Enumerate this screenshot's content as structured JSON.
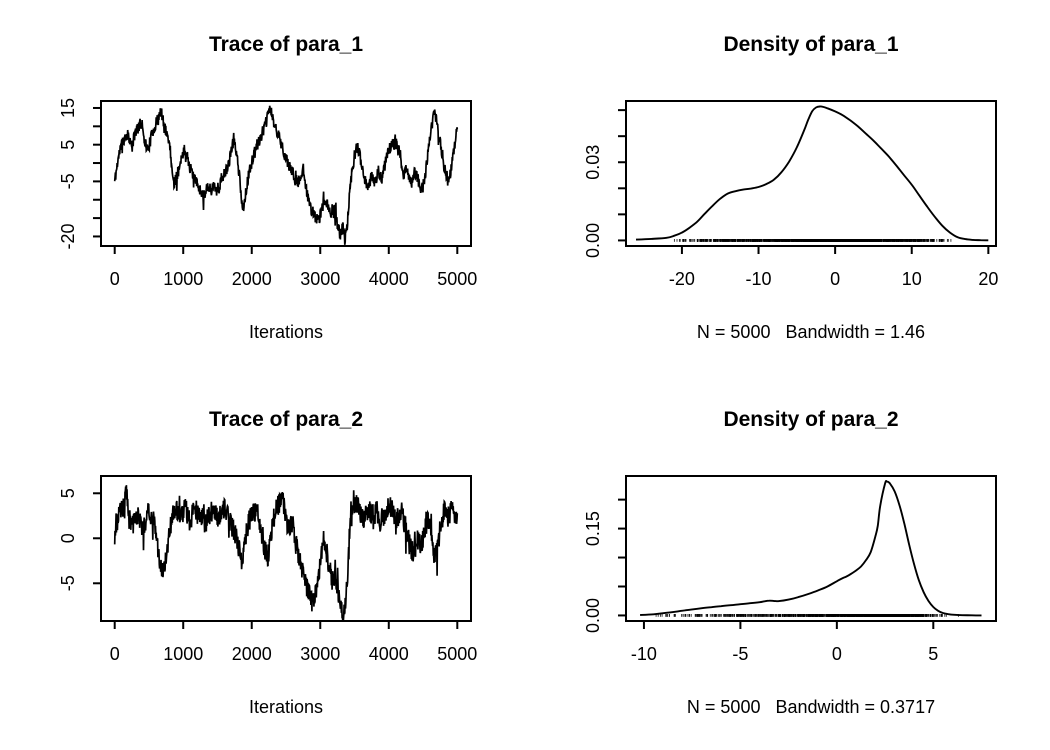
{
  "figure": {
    "background": "#ffffff",
    "foreground": "#000000",
    "description": "MCMC trace and density diagnostic plots for para_1 and para_2"
  },
  "chart_data": [
    {
      "id": "trace-para-1",
      "type": "line",
      "title": "Trace of para_1",
      "xlabel": "Iterations",
      "xlim": [
        -200,
        5200
      ],
      "ylim": [
        -22.6,
        16.9
      ],
      "xticks": [
        0,
        1000,
        2000,
        3000,
        4000,
        5000
      ],
      "xtick_labels": [
        "0",
        "1000",
        "2000",
        "3000",
        "4000",
        "5000"
      ],
      "yticks": [
        15,
        10,
        5,
        0,
        -5,
        -10,
        -15,
        -20
      ],
      "ytick_labels": [
        "15",
        "",
        "5",
        "",
        "-5",
        "",
        "",
        "-20"
      ],
      "series_anchors": [
        [
          0,
          -5
        ],
        [
          40,
          0
        ],
        [
          80,
          4
        ],
        [
          130,
          6.5
        ],
        [
          200,
          8
        ],
        [
          250,
          4
        ],
        [
          300,
          8.5
        ],
        [
          350,
          10
        ],
        [
          400,
          11
        ],
        [
          440,
          6
        ],
        [
          480,
          3.5
        ],
        [
          520,
          6
        ],
        [
          560,
          9
        ],
        [
          600,
          10.5
        ],
        [
          640,
          12.5
        ],
        [
          680,
          14
        ],
        [
          720,
          10
        ],
        [
          760,
          8
        ],
        [
          790,
          6.5
        ],
        [
          820,
          2
        ],
        [
          860,
          -6
        ],
        [
          900,
          -3.5
        ],
        [
          950,
          -1
        ],
        [
          1020,
          4
        ],
        [
          1070,
          1
        ],
        [
          1120,
          -2.5
        ],
        [
          1180,
          -5
        ],
        [
          1240,
          -7
        ],
        [
          1300,
          -9
        ],
        [
          1350,
          -6
        ],
        [
          1400,
          -7.5
        ],
        [
          1450,
          -6
        ],
        [
          1510,
          -8
        ],
        [
          1560,
          -4
        ],
        [
          1620,
          -2.5
        ],
        [
          1680,
          1
        ],
        [
          1740,
          7
        ],
        [
          1800,
          0
        ],
        [
          1870,
          -13
        ],
        [
          1910,
          -8
        ],
        [
          1960,
          -3
        ],
        [
          2010,
          1
        ],
        [
          2080,
          5
        ],
        [
          2150,
          8
        ],
        [
          2210,
          11
        ],
        [
          2265,
          15.3
        ],
        [
          2320,
          11
        ],
        [
          2380,
          8
        ],
        [
          2440,
          5
        ],
        [
          2500,
          1
        ],
        [
          2550,
          -1
        ],
        [
          2610,
          -3
        ],
        [
          2680,
          -5.5
        ],
        [
          2750,
          -1.5
        ],
        [
          2800,
          -7
        ],
        [
          2850,
          -12
        ],
        [
          2910,
          -14
        ],
        [
          2970,
          -16
        ],
        [
          3020,
          -13
        ],
        [
          3060,
          -9.5
        ],
        [
          3110,
          -11.5
        ],
        [
          3160,
          -14
        ],
        [
          3210,
          -13
        ],
        [
          3250,
          -17
        ],
        [
          3290,
          -19.5
        ],
        [
          3330,
          -17
        ],
        [
          3360,
          -21
        ],
        [
          3395,
          -17
        ],
        [
          3425,
          -9
        ],
        [
          3460,
          -3
        ],
        [
          3500,
          2
        ],
        [
          3550,
          4.5
        ],
        [
          3600,
          0
        ],
        [
          3650,
          -4
        ],
        [
          3700,
          -7
        ],
        [
          3750,
          -3
        ],
        [
          3800,
          -5.5
        ],
        [
          3850,
          -2
        ],
        [
          3900,
          -4.5
        ],
        [
          3950,
          0
        ],
        [
          4000,
          4
        ],
        [
          4060,
          5
        ],
        [
          4120,
          5.5
        ],
        [
          4170,
          2
        ],
        [
          4210,
          -4
        ],
        [
          4260,
          -1
        ],
        [
          4300,
          -4
        ],
        [
          4340,
          -5.5
        ],
        [
          4380,
          -2.5
        ],
        [
          4420,
          -4
        ],
        [
          4460,
          -7
        ],
        [
          4500,
          -6.5
        ],
        [
          4540,
          -2
        ],
        [
          4580,
          4
        ],
        [
          4620,
          9
        ],
        [
          4660,
          14.5
        ],
        [
          4690,
          12
        ],
        [
          4720,
          9
        ],
        [
          4760,
          5
        ],
        [
          4800,
          0
        ],
        [
          4840,
          -3.5
        ],
        [
          4870,
          -5.5
        ],
        [
          4900,
          -3
        ],
        [
          4930,
          1
        ],
        [
          4960,
          5
        ],
        [
          5000,
          9.5
        ]
      ],
      "noise": {
        "amp": 1.7,
        "n": 1000,
        "seed": 11
      }
    },
    {
      "id": "density-para-1",
      "type": "area",
      "title": "Density of para_1",
      "xlabel": "N = 5000   Bandwidth = 1.46",
      "xlim": [
        -27.3,
        21.0
      ],
      "ylim": [
        -0.00214,
        0.0535
      ],
      "xticks": [
        -20,
        -10,
        0,
        10,
        20
      ],
      "xtick_labels": [
        "-20",
        "-10",
        "0",
        "10",
        "20"
      ],
      "yticks": [
        0,
        0.01,
        0.02,
        0.03,
        0.04,
        0.05
      ],
      "ytick_labels": [
        "0.00",
        "",
        "",
        "0.03",
        "",
        ""
      ],
      "curve": [
        [
          -26,
          0.0003
        ],
        [
          -24,
          0.0006
        ],
        [
          -22,
          0.001
        ],
        [
          -21,
          0.0018
        ],
        [
          -20,
          0.003
        ],
        [
          -19,
          0.0049
        ],
        [
          -18,
          0.0072
        ],
        [
          -17,
          0.0103
        ],
        [
          -16,
          0.0133
        ],
        [
          -15,
          0.016
        ],
        [
          -14,
          0.018
        ],
        [
          -13,
          0.0189
        ],
        [
          -12,
          0.0195
        ],
        [
          -11,
          0.0199
        ],
        [
          -10,
          0.0205
        ],
        [
          -9,
          0.0216
        ],
        [
          -8,
          0.0233
        ],
        [
          -7,
          0.0262
        ],
        [
          -6,
          0.0303
        ],
        [
          -5,
          0.0357
        ],
        [
          -4,
          0.0426
        ],
        [
          -3.5,
          0.0464
        ],
        [
          -3,
          0.0495
        ],
        [
          -2.5,
          0.051
        ],
        [
          -2,
          0.0514
        ],
        [
          -1.5,
          0.0512
        ],
        [
          -1,
          0.0507
        ],
        [
          0,
          0.0495
        ],
        [
          1,
          0.048
        ],
        [
          2,
          0.046
        ],
        [
          3,
          0.0437
        ],
        [
          4,
          0.041
        ],
        [
          5,
          0.0383
        ],
        [
          6,
          0.0353
        ],
        [
          7,
          0.0322
        ],
        [
          8,
          0.0287
        ],
        [
          9,
          0.025
        ],
        [
          10,
          0.0214
        ],
        [
          11,
          0.0172
        ],
        [
          12,
          0.013
        ],
        [
          13,
          0.0091
        ],
        [
          14,
          0.0056
        ],
        [
          15,
          0.003
        ],
        [
          16,
          0.0012
        ],
        [
          17,
          0.0005
        ],
        [
          18,
          0.0002
        ],
        [
          19,
          0.0001
        ],
        [
          20,
          5e-05
        ]
      ],
      "rug": {
        "n": 1600,
        "seed": 5,
        "range": [
          -21.3,
          15.3
        ]
      }
    },
    {
      "id": "trace-para-2",
      "type": "line",
      "title": "Trace of para_2",
      "xlabel": "Iterations",
      "xlim": [
        -200,
        5200
      ],
      "ylim": [
        -9.19,
        6.92
      ],
      "xticks": [
        0,
        1000,
        2000,
        3000,
        4000,
        5000
      ],
      "xtick_labels": [
        "0",
        "1000",
        "2000",
        "3000",
        "4000",
        "5000"
      ],
      "yticks": [
        5,
        0,
        -5
      ],
      "ytick_labels": [
        "5",
        "0",
        "-5"
      ],
      "series_anchors": [
        [
          0,
          0.3
        ],
        [
          60,
          2.8
        ],
        [
          120,
          3.2
        ],
        [
          170,
          5.8
        ],
        [
          210,
          2.2
        ],
        [
          260,
          1.2
        ],
        [
          310,
          2.8
        ],
        [
          360,
          2.2
        ],
        [
          420,
          0.8
        ],
        [
          480,
          3.2
        ],
        [
          540,
          2.6
        ],
        [
          600,
          1
        ],
        [
          650,
          -2.2
        ],
        [
          700,
          -3.8
        ],
        [
          750,
          -1.8
        ],
        [
          800,
          0.5
        ],
        [
          850,
          2.8
        ],
        [
          910,
          3.2
        ],
        [
          970,
          2.2
        ],
        [
          1030,
          3.4
        ],
        [
          1090,
          2
        ],
        [
          1150,
          2.8
        ],
        [
          1210,
          3.2
        ],
        [
          1270,
          2.4
        ],
        [
          1330,
          1.6
        ],
        [
          1390,
          2.8
        ],
        [
          1450,
          3.4
        ],
        [
          1510,
          2
        ],
        [
          1570,
          3.6
        ],
        [
          1630,
          2.8
        ],
        [
          1690,
          1.8
        ],
        [
          1750,
          0.6
        ],
        [
          1810,
          -1
        ],
        [
          1860,
          -2.6
        ],
        [
          1910,
          0
        ],
        [
          1960,
          2
        ],
        [
          2020,
          2.8
        ],
        [
          2080,
          3.2
        ],
        [
          2130,
          1.2
        ],
        [
          2180,
          -0.8
        ],
        [
          2230,
          -2.4
        ],
        [
          2280,
          0.6
        ],
        [
          2330,
          2.6
        ],
        [
          2390,
          3.8
        ],
        [
          2440,
          4.6
        ],
        [
          2490,
          2.6
        ],
        [
          2540,
          0.8
        ],
        [
          2590,
          1.8
        ],
        [
          2640,
          -0.6
        ],
        [
          2690,
          -2
        ],
        [
          2740,
          -3.4
        ],
        [
          2790,
          -5
        ],
        [
          2840,
          -6.2
        ],
        [
          2890,
          -7.4
        ],
        [
          2930,
          -6
        ],
        [
          2970,
          -4.4
        ],
        [
          3010,
          -2
        ],
        [
          3050,
          0.2
        ],
        [
          3090,
          -1.4
        ],
        [
          3130,
          -3.2
        ],
        [
          3170,
          -4.6
        ],
        [
          3210,
          -4
        ],
        [
          3250,
          -5.4
        ],
        [
          3290,
          -7
        ],
        [
          3330,
          -8.6
        ],
        [
          3365,
          -7
        ],
        [
          3400,
          -3.6
        ],
        [
          3435,
          1
        ],
        [
          3470,
          3.2
        ],
        [
          3520,
          4
        ],
        [
          3580,
          3
        ],
        [
          3640,
          2.2
        ],
        [
          3700,
          3.4
        ],
        [
          3760,
          2.6
        ],
        [
          3820,
          3.2
        ],
        [
          3880,
          1.8
        ],
        [
          3940,
          2.8
        ],
        [
          4000,
          3.8
        ],
        [
          4060,
          3
        ],
        [
          4120,
          2.2
        ],
        [
          4180,
          3.2
        ],
        [
          4240,
          1.4
        ],
        [
          4300,
          -0.6
        ],
        [
          4360,
          -1.8
        ],
        [
          4420,
          0
        ],
        [
          4470,
          -1.2
        ],
        [
          4520,
          1
        ],
        [
          4570,
          2.6
        ],
        [
          4620,
          0.4
        ],
        [
          4670,
          -2.4
        ],
        [
          4720,
          -0.6
        ],
        [
          4770,
          2
        ],
        [
          4820,
          3.2
        ],
        [
          4870,
          2.4
        ],
        [
          4920,
          3.2
        ],
        [
          4960,
          2.6
        ],
        [
          5000,
          2.2
        ]
      ],
      "noise": {
        "amp": 1.2,
        "n": 1000,
        "seed": 23
      }
    },
    {
      "id": "density-para-2",
      "type": "area",
      "title": "Density of para_2",
      "xlabel": "N = 5000   Bandwidth = 0.3717",
      "xlim": [
        -10.93,
        8.25
      ],
      "ylim": [
        -0.0096,
        0.2408
      ],
      "xticks": [
        -10,
        -5,
        0,
        5
      ],
      "xtick_labels": [
        "-10",
        "-5",
        "0",
        "5"
      ],
      "yticks": [
        0,
        0.05,
        0.1,
        0.15,
        0.2
      ],
      "ytick_labels": [
        "0.00",
        "",
        "",
        "0.15",
        ""
      ],
      "curve": [
        [
          -10.2,
          0.0008
        ],
        [
          -9.5,
          0.002
        ],
        [
          -9,
          0.0038
        ],
        [
          -8.5,
          0.0058
        ],
        [
          -8,
          0.0082
        ],
        [
          -7.5,
          0.0104
        ],
        [
          -7,
          0.0125
        ],
        [
          -6.5,
          0.0143
        ],
        [
          -6,
          0.016
        ],
        [
          -5.5,
          0.0177
        ],
        [
          -5,
          0.0194
        ],
        [
          -4.5,
          0.0211
        ],
        [
          -4,
          0.0229
        ],
        [
          -3.75,
          0.0245
        ],
        [
          -3.5,
          0.0255
        ],
        [
          -3.25,
          0.025
        ],
        [
          -3,
          0.0247
        ],
        [
          -2.5,
          0.0273
        ],
        [
          -2,
          0.0316
        ],
        [
          -1.5,
          0.0368
        ],
        [
          -1,
          0.0429
        ],
        [
          -0.5,
          0.0498
        ],
        [
          0,
          0.059
        ],
        [
          0.25,
          0.0637
        ],
        [
          0.5,
          0.0672
        ],
        [
          0.75,
          0.072
        ],
        [
          1,
          0.0776
        ],
        [
          1.25,
          0.0846
        ],
        [
          1.5,
          0.095
        ],
        [
          1.75,
          0.1089
        ],
        [
          2,
          0.1366
        ],
        [
          2.125,
          0.155
        ],
        [
          2.25,
          0.19
        ],
        [
          2.5,
          0.228
        ],
        [
          2.6,
          0.2312
        ],
        [
          2.75,
          0.228
        ],
        [
          3,
          0.214
        ],
        [
          3.25,
          0.19
        ],
        [
          3.5,
          0.158
        ],
        [
          3.75,
          0.122
        ],
        [
          4,
          0.089
        ],
        [
          4.25,
          0.061
        ],
        [
          4.5,
          0.04
        ],
        [
          4.75,
          0.025
        ],
        [
          5,
          0.0145
        ],
        [
          5.25,
          0.008
        ],
        [
          5.5,
          0.0042
        ],
        [
          5.75,
          0.0024
        ],
        [
          6,
          0.0012
        ],
        [
          6.5,
          0.0005
        ],
        [
          7,
          0.0002
        ],
        [
          7.5,
          0.0001
        ]
      ],
      "rug": {
        "n": 1600,
        "seed": 9,
        "range": [
          -9.5,
          6.6
        ]
      }
    }
  ]
}
